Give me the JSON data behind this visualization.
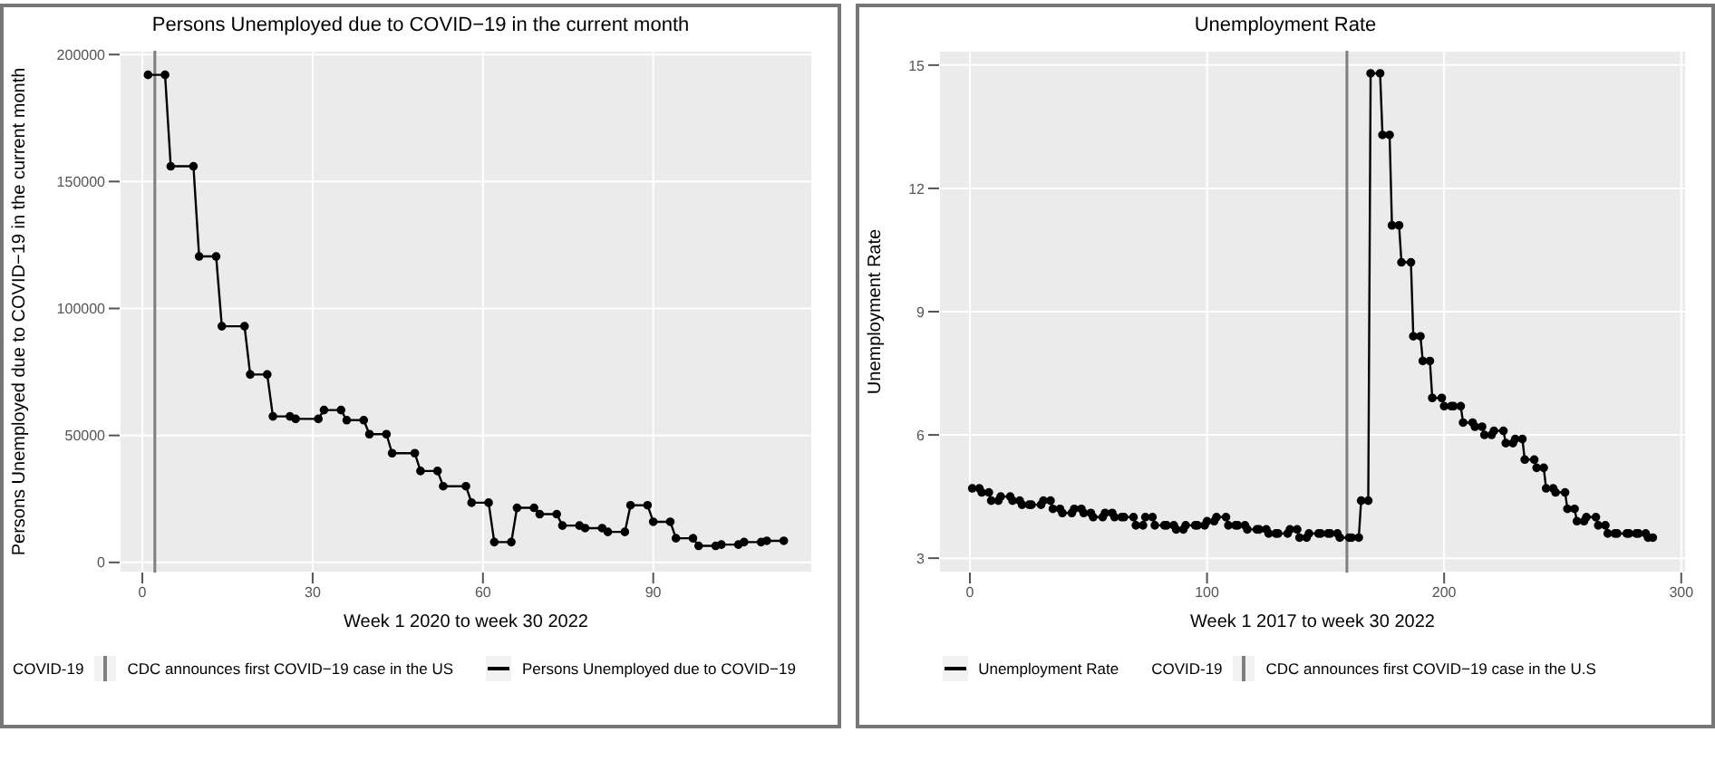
{
  "chart_data": [
    {
      "type": "line",
      "title": "Persons Unemployed due to COVID−19 in the current month",
      "xlabel": "Week 1 2020 to week 30 2022",
      "ylabel": "Persons Unemployed due to COVID−19 in the current month",
      "legend_title": "COVID-19",
      "legend": "bottom",
      "grid": true,
      "marker": "circle",
      "line_style": "solid",
      "xlim": [
        -4,
        118
      ],
      "xticks": [
        0,
        30,
        60,
        90
      ],
      "ylim": [
        -4000,
        201500
      ],
      "yticks": [
        0,
        50000,
        100000,
        150000,
        200000
      ],
      "ref_lines": [
        {
          "axis": "x",
          "value": 2.2,
          "label": "CDC announces first COVID−19 case in the US",
          "color": "#7f7f7f"
        }
      ],
      "series": [
        {
          "name": "Persons Unemployed due to COVID−19",
          "color": "#000000",
          "x": [
            1,
            4,
            5,
            9,
            10,
            13,
            14,
            18,
            19,
            22,
            23,
            26,
            27,
            31,
            32,
            35,
            36,
            39,
            40,
            43,
            44,
            48,
            49,
            52,
            53,
            57,
            58,
            61,
            62,
            65,
            66,
            69,
            70,
            73,
            74,
            77,
            78,
            81,
            82,
            85,
            86,
            89,
            90,
            93,
            94,
            97,
            98,
            101,
            102,
            105,
            106,
            109,
            110,
            113
          ],
          "values": [
            192000,
            192000,
            156000,
            156000,
            120500,
            120500,
            93000,
            93000,
            74000,
            74000,
            57500,
            57500,
            56500,
            56500,
            60000,
            60000,
            56000,
            56000,
            50500,
            50500,
            43000,
            43000,
            36000,
            36000,
            30000,
            30000,
            23500,
            23500,
            8000,
            8000,
            21500,
            21500,
            19000,
            19000,
            14500,
            14500,
            13500,
            13500,
            12000,
            12000,
            22500,
            22500,
            16000,
            16000,
            9500,
            9500,
            6500,
            6500,
            7000,
            7000,
            8000,
            8000,
            8500,
            8500
          ]
        }
      ]
    },
    {
      "type": "line",
      "title": "Unemployment Rate",
      "xlabel": "Week 1 2017 to week 30 2022",
      "ylabel": "Unemployment Rate",
      "legend_title": "COVID-19",
      "legend": "bottom",
      "grid": true,
      "marker": "circle",
      "line_style": "solid",
      "xlim": [
        -13,
        302
      ],
      "xticks": [
        0,
        100,
        200,
        300
      ],
      "ylim": [
        2.65,
        15.35
      ],
      "yticks": [
        3,
        6,
        9,
        12,
        15
      ],
      "ref_lines": [
        {
          "axis": "x",
          "value": 159,
          "label": "CDC announces first COVID−19 case in the U.S",
          "color": "#7f7f7f"
        }
      ],
      "series": [
        {
          "name": "Unemployment Rate",
          "color": "#000000",
          "x": [
            1,
            4,
            5,
            8,
            9,
            12,
            13,
            17,
            18,
            21,
            22,
            25,
            26,
            30,
            31,
            34,
            35,
            38,
            39,
            43,
            44,
            47,
            48,
            51,
            52,
            56,
            57,
            60,
            61,
            64,
            65,
            69,
            70,
            73,
            74,
            77,
            78,
            82,
            83,
            86,
            87,
            90,
            91,
            95,
            96,
            99,
            100,
            103,
            104,
            108,
            109,
            112,
            113,
            116,
            117,
            121,
            122,
            125,
            126,
            129,
            130,
            134,
            135,
            138,
            139,
            142,
            143,
            147,
            148,
            151,
            152,
            155,
            156,
            160,
            161,
            164,
            165,
            168,
            169,
            173,
            174,
            177,
            178,
            181,
            182,
            186,
            187,
            190,
            191,
            194,
            195,
            199,
            200,
            203,
            204,
            207,
            208,
            212,
            213,
            216,
            217,
            220,
            221,
            225,
            226,
            229,
            230,
            233,
            234,
            238,
            239,
            242,
            243,
            246,
            247,
            251,
            252,
            255,
            256,
            259,
            260,
            264,
            265,
            268,
            269,
            272,
            273,
            277,
            278,
            281,
            282,
            285,
            286,
            288
          ],
          "values": [
            4.7,
            4.7,
            4.6,
            4.6,
            4.4,
            4.4,
            4.5,
            4.5,
            4.4,
            4.4,
            4.3,
            4.3,
            4.3,
            4.3,
            4.4,
            4.4,
            4.2,
            4.2,
            4.1,
            4.1,
            4.2,
            4.2,
            4.1,
            4.1,
            4.0,
            4.0,
            4.1,
            4.1,
            4.0,
            4.0,
            4.0,
            4.0,
            3.8,
            3.8,
            4.0,
            4.0,
            3.8,
            3.8,
            3.8,
            3.8,
            3.7,
            3.7,
            3.8,
            3.8,
            3.8,
            3.8,
            3.9,
            3.9,
            4.0,
            4.0,
            3.8,
            3.8,
            3.8,
            3.8,
            3.7,
            3.7,
            3.7,
            3.7,
            3.6,
            3.6,
            3.6,
            3.6,
            3.7,
            3.7,
            3.5,
            3.5,
            3.6,
            3.6,
            3.6,
            3.6,
            3.6,
            3.6,
            3.5,
            3.5,
            3.5,
            3.5,
            4.4,
            4.4,
            14.8,
            14.8,
            13.3,
            13.3,
            11.1,
            11.1,
            10.2,
            10.2,
            8.4,
            8.4,
            7.8,
            7.8,
            6.9,
            6.9,
            6.7,
            6.7,
            6.7,
            6.7,
            6.3,
            6.3,
            6.2,
            6.2,
            6.0,
            6.0,
            6.1,
            6.1,
            5.8,
            5.8,
            5.9,
            5.9,
            5.4,
            5.4,
            5.2,
            5.2,
            4.7,
            4.7,
            4.6,
            4.6,
            4.2,
            4.2,
            3.9,
            3.9,
            4.0,
            4.0,
            3.8,
            3.8,
            3.6,
            3.6,
            3.6,
            3.6,
            3.6,
            3.6,
            3.6,
            3.6,
            3.5,
            3.5
          ]
        }
      ]
    }
  ]
}
